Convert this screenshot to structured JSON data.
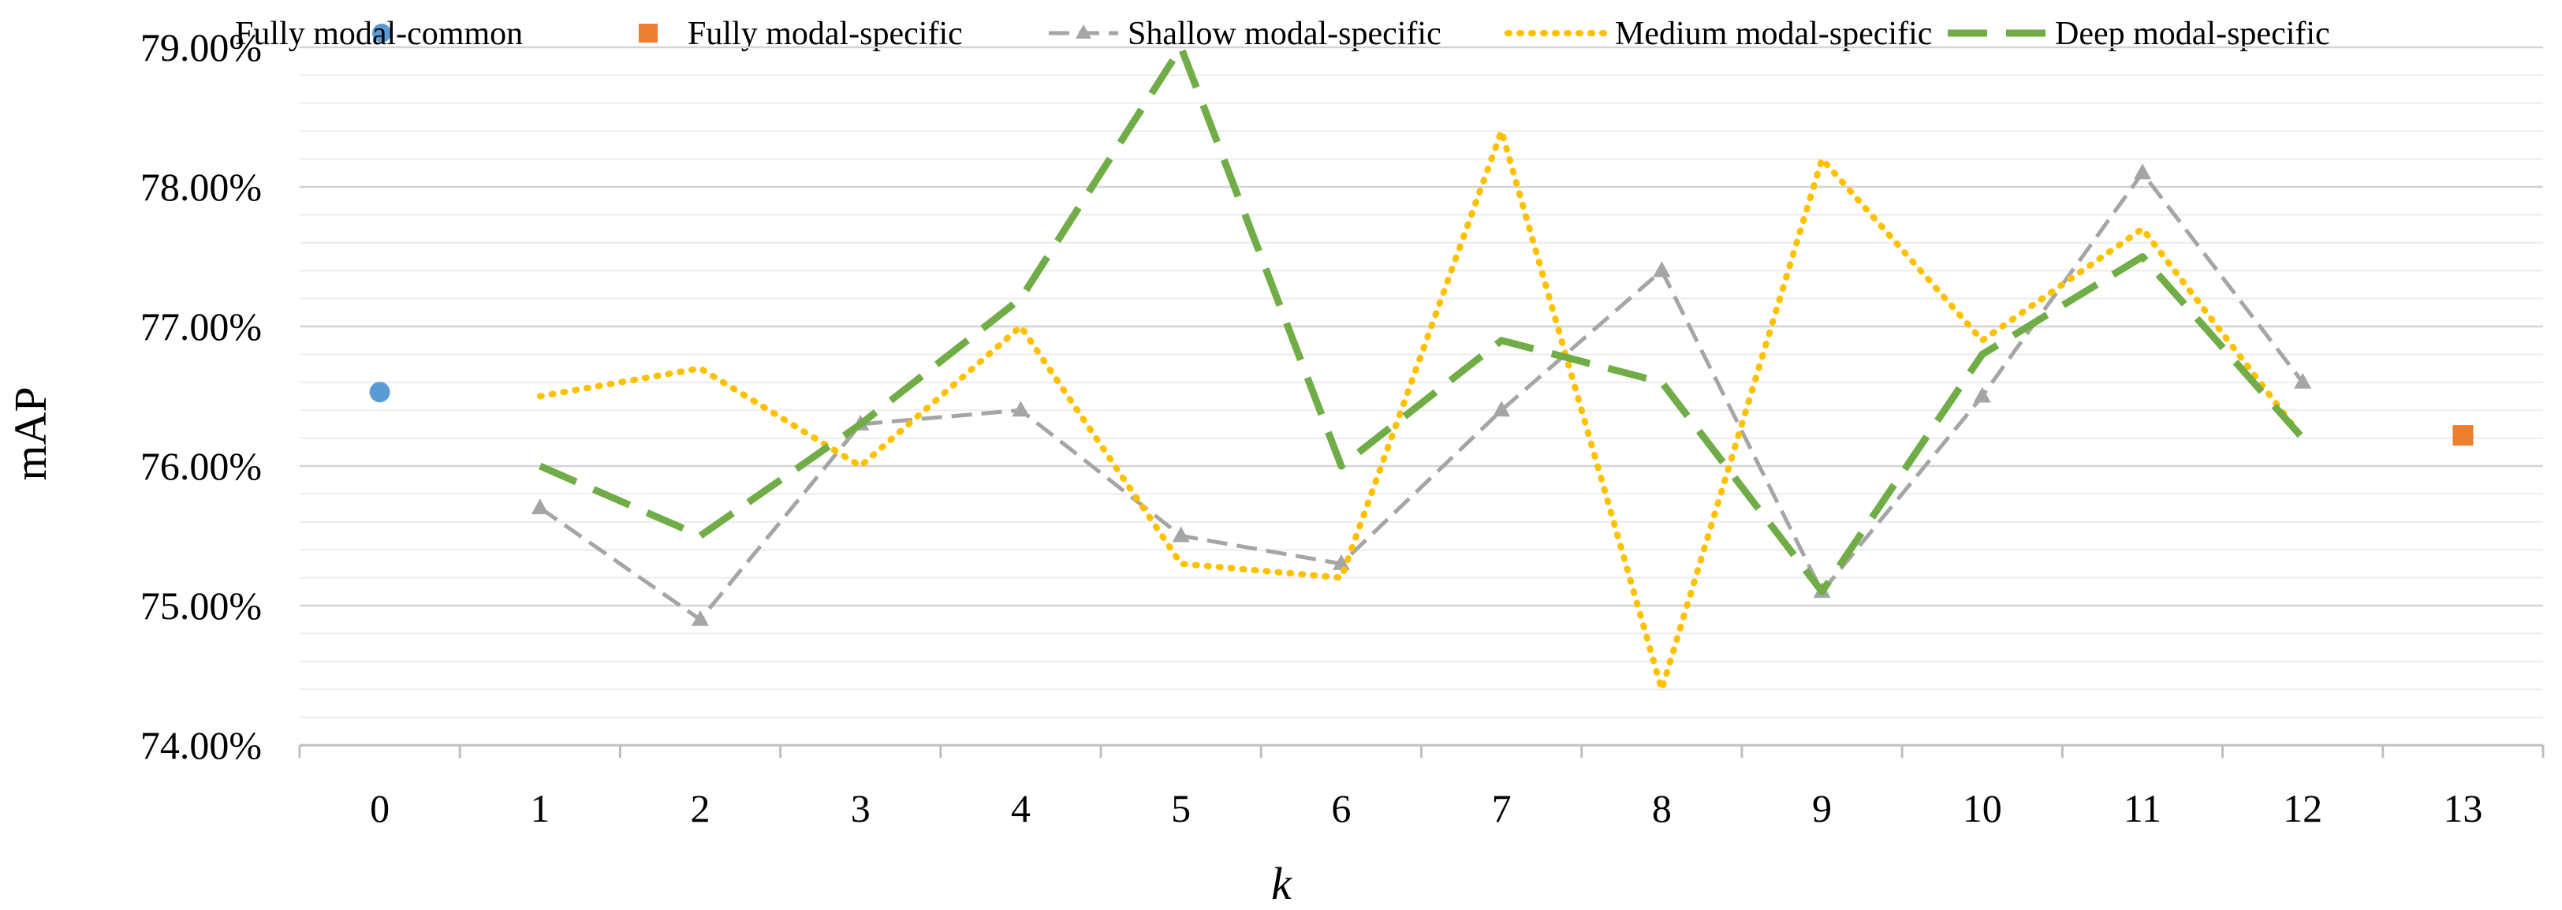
{
  "chart_data": {
    "type": "line",
    "title": "",
    "xlabel": "k",
    "ylabel": "mAP",
    "ylim": [
      0.74,
      0.79
    ],
    "y_major_ticks": [
      0.74,
      0.75,
      0.76,
      0.77,
      0.78,
      0.79
    ],
    "y_tick_labels": [
      "74.00%",
      "75.00%",
      "76.00%",
      "77.00%",
      "78.00%",
      "79.00%"
    ],
    "y_minor_step": 0.002,
    "categories": [
      "0",
      "1",
      "2",
      "3",
      "4",
      "5",
      "6",
      "7",
      "8",
      "9",
      "10",
      "11",
      "12",
      "13"
    ],
    "legend_position": "top",
    "series": [
      {
        "name": "Fully modal-common",
        "style": "marker-circle",
        "color": "#5B9BD5",
        "x": [
          "0"
        ],
        "values": [
          0.7653
        ]
      },
      {
        "name": "Fully modal-specific",
        "style": "marker-square",
        "color": "#ED7D31",
        "x": [
          "13"
        ],
        "values": [
          0.7622
        ]
      },
      {
        "name": "Shallow modal-specific",
        "style": "dashed-triangle",
        "color": "#A5A5A5",
        "x": [
          "1",
          "2",
          "3",
          "4",
          "5",
          "6",
          "7",
          "8",
          "9",
          "10",
          "11",
          "12"
        ],
        "values": [
          0.757,
          0.749,
          0.763,
          0.764,
          0.755,
          0.753,
          0.764,
          0.774,
          0.751,
          0.765,
          0.781,
          0.766
        ]
      },
      {
        "name": "Medium modal-specific",
        "style": "dotted",
        "color": "#FFC000",
        "x": [
          "1",
          "2",
          "3",
          "4",
          "5",
          "6",
          "7",
          "8",
          "9",
          "10",
          "11",
          "12"
        ],
        "values": [
          0.765,
          0.767,
          0.76,
          0.77,
          0.753,
          0.752,
          0.784,
          0.744,
          0.782,
          0.769,
          0.777,
          0.762
        ]
      },
      {
        "name": "Deep modal-specific",
        "style": "long-dash",
        "color": "#70AD47",
        "x": [
          "1",
          "2",
          "3",
          "4",
          "5",
          "6",
          "7",
          "8",
          "9",
          "10",
          "11",
          "12"
        ],
        "values": [
          0.76,
          0.755,
          0.763,
          0.772,
          0.79,
          0.76,
          0.769,
          0.766,
          0.751,
          0.768,
          0.775,
          0.762
        ]
      }
    ]
  }
}
